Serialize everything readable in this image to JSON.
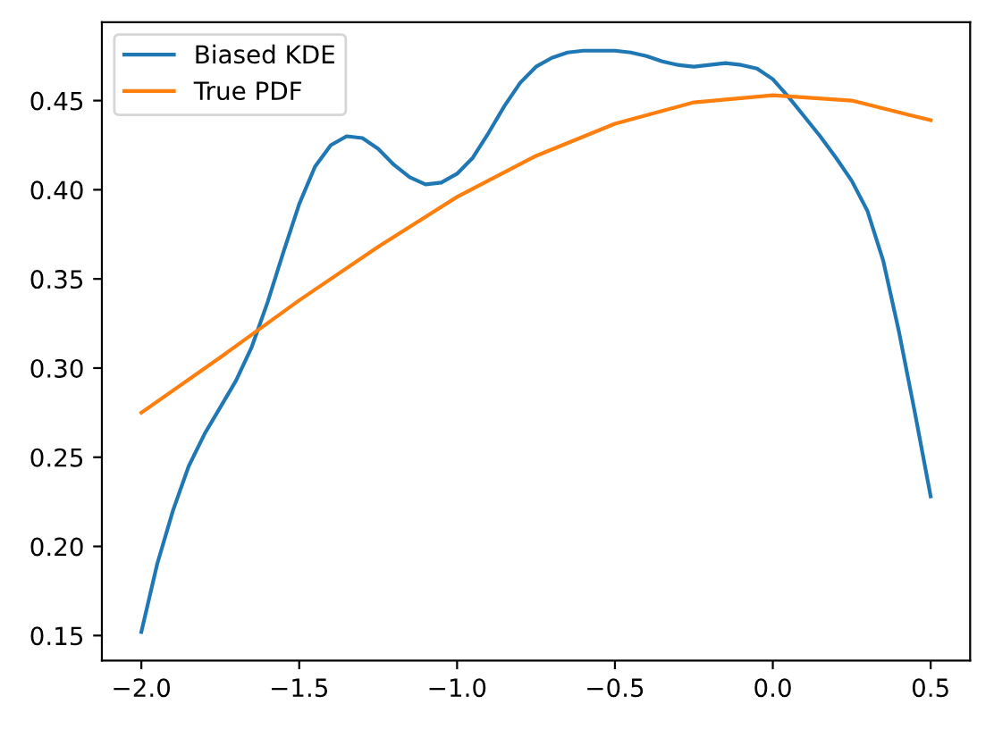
{
  "chart_data": {
    "type": "line",
    "xlim": [
      -2.125,
      0.625
    ],
    "ylim": [
      0.136,
      0.494
    ],
    "xticks": [
      {
        "value": -2.0,
        "label": "−2.0"
      },
      {
        "value": -1.5,
        "label": "−1.5"
      },
      {
        "value": -1.0,
        "label": "−1.0"
      },
      {
        "value": -0.5,
        "label": "−0.5"
      },
      {
        "value": 0.0,
        "label": "0.0"
      },
      {
        "value": 0.5,
        "label": "0.5"
      }
    ],
    "yticks": [
      {
        "value": 0.15,
        "label": "0.15"
      },
      {
        "value": 0.2,
        "label": "0.20"
      },
      {
        "value": 0.25,
        "label": "0.25"
      },
      {
        "value": 0.3,
        "label": "0.30"
      },
      {
        "value": 0.35,
        "label": "0.35"
      },
      {
        "value": 0.4,
        "label": "0.40"
      },
      {
        "value": 0.45,
        "label": "0.45"
      }
    ],
    "grid": false,
    "legend": "top left",
    "series": [
      {
        "name": "Biased KDE",
        "color": "#1f77b4",
        "x": [
          -2.0,
          -1.95,
          -1.9,
          -1.85,
          -1.8,
          -1.75,
          -1.7,
          -1.65,
          -1.6,
          -1.55,
          -1.5,
          -1.45,
          -1.4,
          -1.35,
          -1.3,
          -1.25,
          -1.2,
          -1.15,
          -1.1,
          -1.05,
          -1.0,
          -0.95,
          -0.9,
          -0.85,
          -0.8,
          -0.75,
          -0.7,
          -0.65,
          -0.6,
          -0.55,
          -0.5,
          -0.45,
          -0.4,
          -0.35,
          -0.3,
          -0.25,
          -0.2,
          -0.15,
          -0.1,
          -0.05,
          0.0,
          0.05,
          0.1,
          0.15,
          0.2,
          0.25,
          0.3,
          0.35,
          0.4,
          0.45,
          0.5
        ],
        "values": [
          0.152,
          0.19,
          0.22,
          0.245,
          0.263,
          0.278,
          0.293,
          0.312,
          0.337,
          0.365,
          0.392,
          0.413,
          0.425,
          0.43,
          0.429,
          0.423,
          0.414,
          0.407,
          0.403,
          0.404,
          0.409,
          0.418,
          0.432,
          0.447,
          0.46,
          0.469,
          0.474,
          0.477,
          0.478,
          0.478,
          0.478,
          0.477,
          0.475,
          0.472,
          0.47,
          0.469,
          0.47,
          0.471,
          0.47,
          0.468,
          0.462,
          0.452,
          0.441,
          0.43,
          0.418,
          0.405,
          0.388,
          0.36,
          0.32,
          0.275,
          0.228
        ]
      },
      {
        "name": "True PDF",
        "color": "#ff7f0e",
        "x": [
          -2.0,
          -1.75,
          -1.5,
          -1.25,
          -1.0,
          -0.75,
          -0.5,
          -0.25,
          0.0,
          0.25,
          0.5
        ],
        "values": [
          0.275,
          0.306,
          0.338,
          0.368,
          0.396,
          0.419,
          0.437,
          0.449,
          0.453,
          0.45,
          0.439
        ]
      }
    ]
  }
}
